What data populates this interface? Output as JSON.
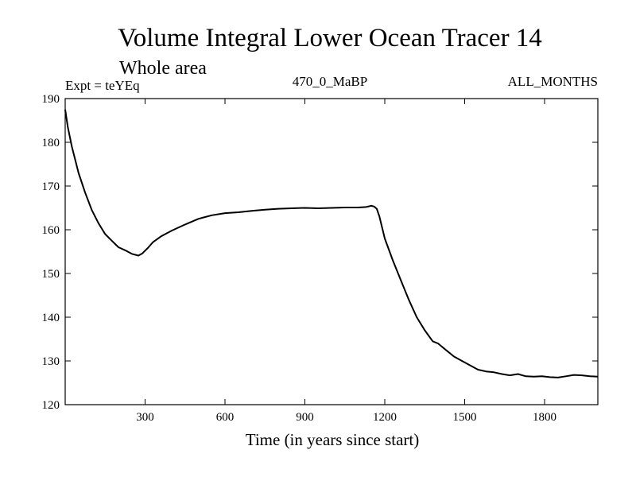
{
  "chart_data": {
    "type": "line",
    "title": "Volume Integral Lower Ocean Tracer 14",
    "subtitle": "Whole area",
    "experiment": "Expt = teYEq",
    "center_label": "470_0_MaBP",
    "right_label": "ALL_MONTHS",
    "xlabel": "Time (in years since start)",
    "ylabel": "",
    "xlim": [
      0,
      2000
    ],
    "ylim": [
      120,
      190
    ],
    "xticks": [
      300,
      600,
      900,
      1200,
      1500,
      1800
    ],
    "yticks": [
      120,
      130,
      140,
      150,
      160,
      170,
      180,
      190
    ],
    "grid": false,
    "series": [
      {
        "name": "Volume Integral Lower Ocean Tracer 14",
        "color": "#000000",
        "x": [
          0,
          10,
          25,
          50,
          75,
          100,
          125,
          150,
          175,
          200,
          225,
          250,
          275,
          290,
          310,
          330,
          360,
          400,
          450,
          500,
          550,
          600,
          650,
          700,
          750,
          800,
          850,
          900,
          950,
          1000,
          1050,
          1100,
          1130,
          1150,
          1160,
          1170,
          1180,
          1200,
          1230,
          1260,
          1290,
          1320,
          1350,
          1380,
          1400,
          1430,
          1460,
          1490,
          1520,
          1550,
          1580,
          1610,
          1640,
          1670,
          1700,
          1730,
          1760,
          1790,
          1820,
          1850,
          1880,
          1910,
          1940,
          1970,
          2000
        ],
        "values": [
          187.5,
          183.5,
          179,
          173,
          168.5,
          164.5,
          161.5,
          159,
          157.5,
          156,
          155.3,
          154.5,
          154.1,
          154.6,
          155.8,
          157.2,
          158.5,
          159.8,
          161.2,
          162.5,
          163.3,
          163.8,
          164,
          164.3,
          164.6,
          164.8,
          164.9,
          165,
          164.9,
          165,
          165.1,
          165.1,
          165.2,
          165.5,
          165.3,
          164.8,
          163,
          158,
          153,
          148.5,
          144,
          140,
          137,
          134.5,
          134,
          132.5,
          131,
          130,
          129,
          128,
          127.6,
          127.4,
          127,
          126.7,
          127,
          126.5,
          126.4,
          126.5,
          126.3,
          126.2,
          126.5,
          126.8,
          126.7,
          126.5,
          126.4
        ]
      }
    ]
  }
}
